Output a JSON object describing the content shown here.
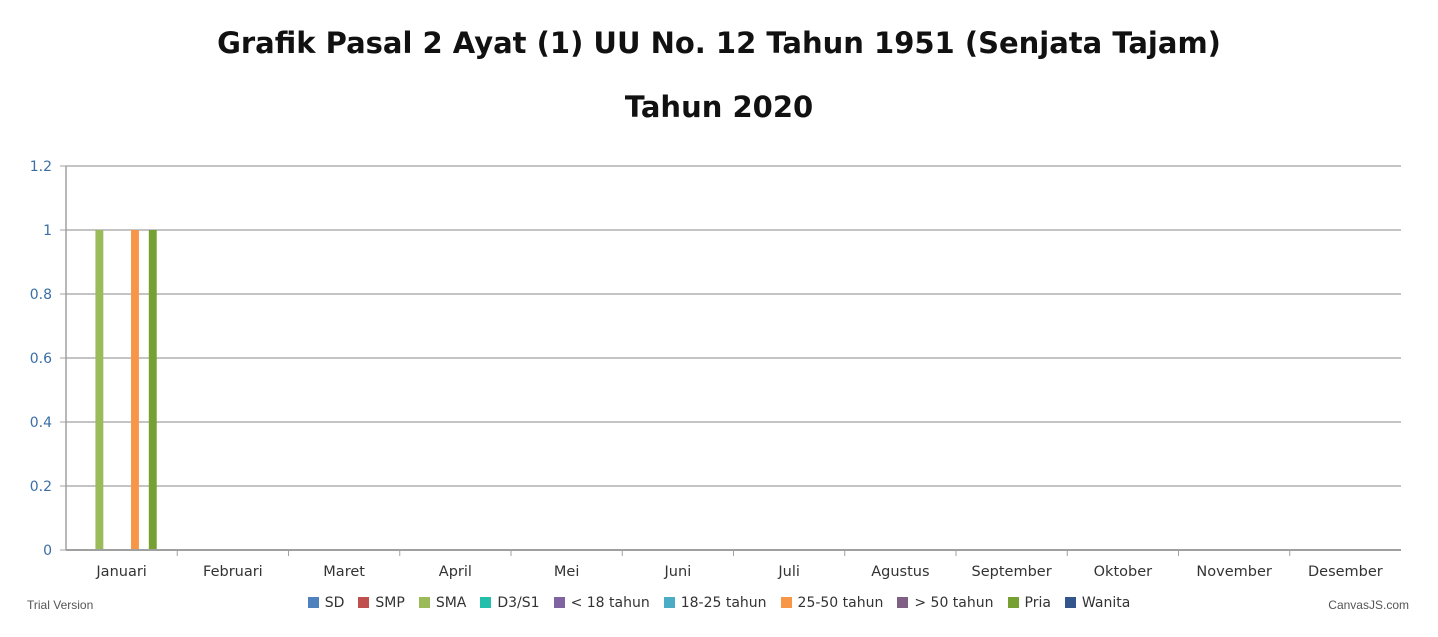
{
  "chart_data": {
    "type": "bar",
    "title": "Grafik Pasal 2 Ayat (1) UU No. 12 Tahun 1951 (Senjata Tajam)",
    "subtitle": "Tahun 2020",
    "xlabel": "",
    "ylabel": "",
    "ylim": [
      0,
      1.2
    ],
    "yticks": [
      "0",
      "0.2",
      "0.4",
      "0.6",
      "0.8",
      "1",
      "1.2"
    ],
    "grid": true,
    "legend_position": "bottom",
    "categories": [
      "Januari",
      "Februari",
      "Maret",
      "April",
      "Mei",
      "Juni",
      "Juli",
      "Agustus",
      "September",
      "Oktober",
      "November",
      "Desember"
    ],
    "series": [
      {
        "name": "SD",
        "color": "#4f81bc",
        "values": [
          0,
          0,
          0,
          0,
          0,
          0,
          0,
          0,
          0,
          0,
          0,
          0
        ]
      },
      {
        "name": "SMP",
        "color": "#c0504e",
        "values": [
          0,
          0,
          0,
          0,
          0,
          0,
          0,
          0,
          0,
          0,
          0,
          0
        ]
      },
      {
        "name": "SMA",
        "color": "#9bbb58",
        "values": [
          1,
          0,
          0,
          0,
          0,
          0,
          0,
          0,
          0,
          0,
          0,
          0
        ]
      },
      {
        "name": "D3/S1",
        "color": "#23bfaa",
        "values": [
          0,
          0,
          0,
          0,
          0,
          0,
          0,
          0,
          0,
          0,
          0,
          0
        ]
      },
      {
        "name": "< 18 tahun",
        "color": "#8064a1",
        "values": [
          0,
          0,
          0,
          0,
          0,
          0,
          0,
          0,
          0,
          0,
          0,
          0
        ]
      },
      {
        "name": "18-25 tahun",
        "color": "#4aacc5",
        "values": [
          0,
          0,
          0,
          0,
          0,
          0,
          0,
          0,
          0,
          0,
          0,
          0
        ]
      },
      {
        "name": "25-50 tahun",
        "color": "#f79647",
        "values": [
          1,
          0,
          0,
          0,
          0,
          0,
          0,
          0,
          0,
          0,
          0,
          0
        ]
      },
      {
        "name": "> 50 tahun",
        "color": "#7f6084",
        "values": [
          0,
          0,
          0,
          0,
          0,
          0,
          0,
          0,
          0,
          0,
          0,
          0
        ]
      },
      {
        "name": "Pria",
        "color": "#77a033",
        "values": [
          1,
          0,
          0,
          0,
          0,
          0,
          0,
          0,
          0,
          0,
          0,
          0
        ]
      },
      {
        "name": "Wanita",
        "color": "#33558b",
        "values": [
          0,
          0,
          0,
          0,
          0,
          0,
          0,
          0,
          0,
          0,
          0,
          0
        ]
      }
    ]
  },
  "footer": {
    "trial": "Trial Version",
    "credit": "CanvasJS.com"
  }
}
